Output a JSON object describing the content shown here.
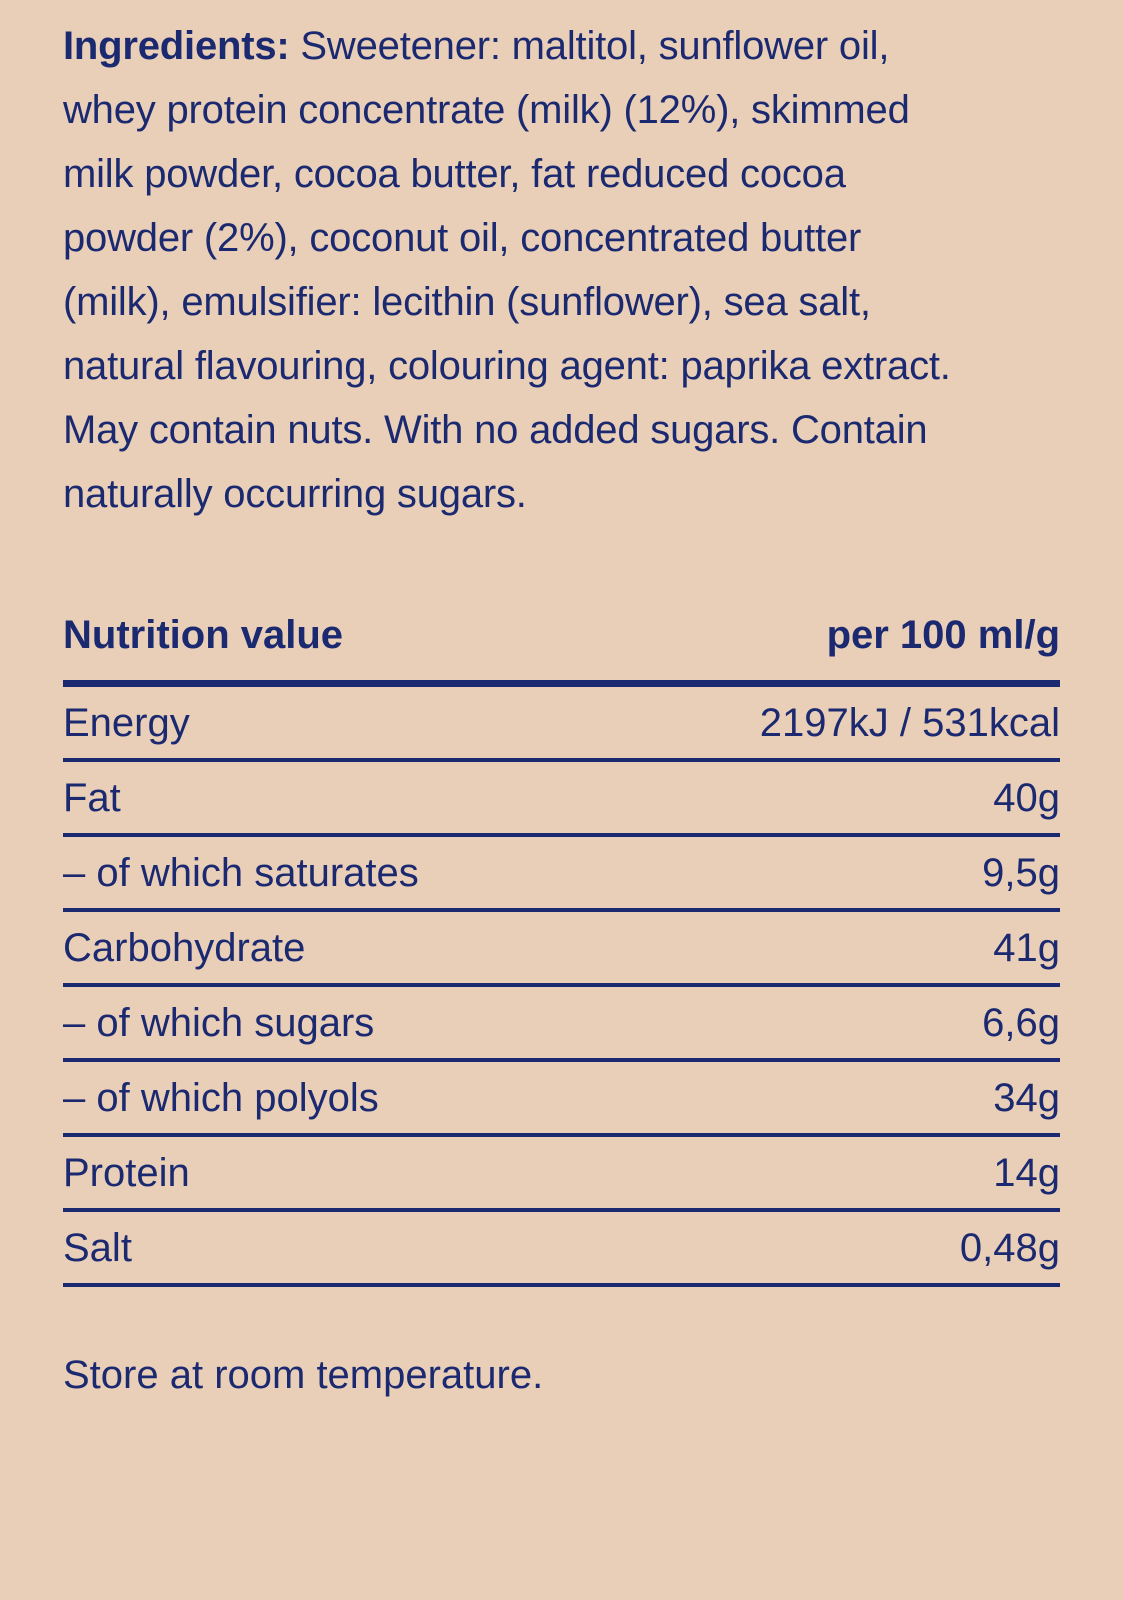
{
  "colors": {
    "background": "#EACFB8",
    "text": "#1B2A70"
  },
  "ingredients": {
    "label": "Ingredients:",
    "text": " Sweetener: maltitol, sunflower oil, whey protein concentrate (milk) (12%), skimmed milk powder, cocoa butter, fat reduced cocoa powder (2%), coconut oil, concentrated butter (milk), emulsifier: lecithin (sunflower), sea salt, natural flavouring, colouring agent: paprika extract. May contain nuts. With no added sugars. Contain naturally occurring sugars."
  },
  "nutrition": {
    "title": "Nutrition value",
    "unit_header": "per 100 ml/g",
    "rows": [
      {
        "label": "Energy",
        "value": "2197kJ / 531kcal"
      },
      {
        "label": "Fat",
        "value": "40g"
      },
      {
        "label": "– of which saturates",
        "value": "9,5g"
      },
      {
        "label": "Carbohydrate",
        "value": "41g"
      },
      {
        "label": "– of which sugars",
        "value": "6,6g"
      },
      {
        "label": "– of which polyols",
        "value": "34g"
      },
      {
        "label": "Protein",
        "value": "14g"
      },
      {
        "label": "Salt",
        "value": "0,48g"
      }
    ]
  },
  "storage": {
    "text": "Store at room temperature."
  }
}
